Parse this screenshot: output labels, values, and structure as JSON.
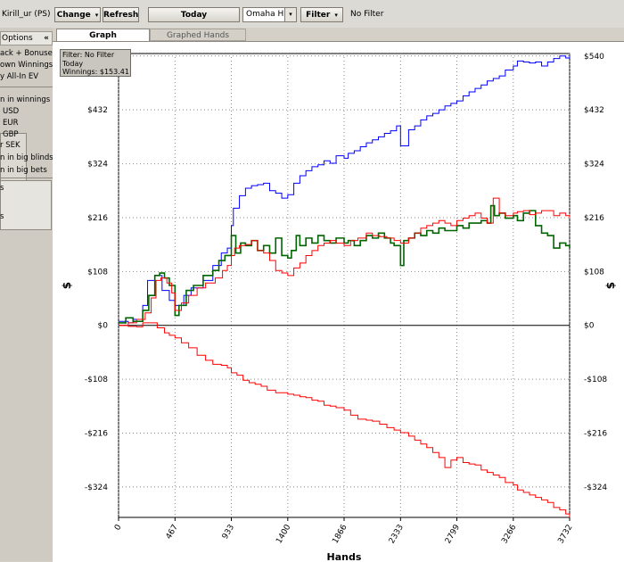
{
  "toolbar": {
    "player_label": "Kirill_ur (PS)",
    "change_label": "Change",
    "refresh_label": "Refresh",
    "today_label": "Today",
    "game_select_value": "Omaha Hi",
    "filter_label": "Filter",
    "filter_status": "No Filter"
  },
  "sidebar": {
    "header_label": "Options",
    "collapse_glyph": "«",
    "items": [
      "ack + Bonuses",
      "own Winnings",
      "y All-In EV"
    ],
    "winnings_label": "n in winnings",
    "currencies": [
      "USD",
      "EUR",
      "GBP",
      "r SEK"
    ],
    "big_blinds_label": "n in big blinds",
    "big_bets_label": "n in big bets",
    "lower_items": [
      "s",
      "",
      "s"
    ]
  },
  "tabs": [
    {
      "label": "Graph",
      "active": true
    },
    {
      "label": "Graphed Hands",
      "active": false
    }
  ],
  "infobox": {
    "filter_line": "Filter: No Filter",
    "date_line": "Today",
    "winnings_line": "Winnings: $153.41"
  },
  "chart_data": {
    "type": "line",
    "xlabel": "Hands",
    "ylabel": "$",
    "x_ticks": [
      0,
      467,
      933,
      1400,
      1866,
      2333,
      2799,
      3266,
      3732
    ],
    "y_ticks": [
      -324,
      -216,
      -108,
      0,
      108,
      216,
      324,
      432,
      540
    ],
    "y_tick_labels": [
      "-$324",
      "-$216",
      "-$108",
      "$0",
      "$108",
      "$216",
      "$324",
      "$432",
      "$540"
    ],
    "xlim": [
      0,
      3732
    ],
    "ylim": [
      -385,
      545
    ],
    "grid": true,
    "colors": {
      "blue": "#0000ff",
      "green": "#006400",
      "red": "#ff0000"
    },
    "series": [
      {
        "color": "blue",
        "x": [
          0,
          80,
          120,
          200,
          240,
          300,
          360,
          420,
          467,
          540,
          600,
          700,
          780,
          850,
          900,
          933,
          950,
          1000,
          1050,
          1100,
          1150,
          1200,
          1250,
          1300,
          1350,
          1400,
          1450,
          1500,
          1550,
          1600,
          1650,
          1700,
          1750,
          1800,
          1866,
          1900,
          1950,
          2000,
          2050,
          2100,
          2150,
          2200,
          2250,
          2300,
          2333,
          2400,
          2450,
          2500,
          2550,
          2600,
          2650,
          2700,
          2750,
          2799,
          2850,
          2900,
          2950,
          3000,
          3050,
          3100,
          3150,
          3200,
          3266,
          3300,
          3350,
          3400,
          3450,
          3500,
          3550,
          3600,
          3650,
          3700,
          3732
        ],
        "y": [
          8,
          5,
          12,
          40,
          90,
          100,
          70,
          50,
          40,
          60,
          75,
          90,
          120,
          145,
          155,
          200,
          235,
          260,
          275,
          280,
          282,
          285,
          270,
          265,
          255,
          262,
          285,
          300,
          310,
          318,
          322,
          330,
          325,
          340,
          335,
          345,
          350,
          358,
          366,
          372,
          378,
          385,
          390,
          400,
          360,
          392,
          400,
          412,
          420,
          425,
          432,
          440,
          445,
          450,
          460,
          468,
          475,
          482,
          490,
          495,
          500,
          512,
          520,
          530,
          528,
          526,
          528,
          520,
          528,
          535,
          540,
          536,
          540
        ]
      },
      {
        "color": "green",
        "x": [
          0,
          60,
          120,
          200,
          250,
          300,
          340,
          380,
          420,
          467,
          500,
          560,
          620,
          700,
          780,
          830,
          880,
          933,
          970,
          1010,
          1050,
          1100,
          1150,
          1200,
          1250,
          1300,
          1350,
          1400,
          1430,
          1470,
          1500,
          1550,
          1600,
          1650,
          1700,
          1750,
          1800,
          1866,
          1900,
          1950,
          2000,
          2050,
          2100,
          2150,
          2200,
          2250,
          2280,
          2333,
          2360,
          2400,
          2450,
          2500,
          2550,
          2600,
          2650,
          2700,
          2750,
          2799,
          2850,
          2900,
          2950,
          3000,
          3050,
          3080,
          3110,
          3150,
          3200,
          3266,
          3300,
          3350,
          3400,
          3450,
          3500,
          3550,
          3600,
          3650,
          3700,
          3732
        ],
        "y": [
          5,
          15,
          8,
          30,
          60,
          100,
          105,
          95,
          80,
          20,
          40,
          70,
          80,
          100,
          110,
          130,
          140,
          180,
          145,
          165,
          160,
          170,
          150,
          160,
          145,
          175,
          140,
          135,
          150,
          180,
          160,
          175,
          165,
          180,
          170,
          165,
          175,
          165,
          170,
          160,
          170,
          180,
          175,
          185,
          175,
          165,
          160,
          120,
          170,
          175,
          185,
          180,
          190,
          185,
          195,
          190,
          190,
          200,
          195,
          205,
          205,
          210,
          205,
          240,
          220,
          225,
          215,
          220,
          210,
          225,
          230,
          200,
          185,
          180,
          155,
          165,
          160,
          155
        ]
      },
      {
        "color": "red",
        "x": [
          0,
          80,
          150,
          220,
          270,
          310,
          350,
          400,
          440,
          467,
          520,
          580,
          650,
          720,
          800,
          860,
          900,
          933,
          960,
          1000,
          1050,
          1100,
          1150,
          1200,
          1250,
          1300,
          1350,
          1400,
          1450,
          1500,
          1550,
          1600,
          1650,
          1700,
          1750,
          1800,
          1866,
          1920,
          1980,
          2050,
          2100,
          2160,
          2220,
          2280,
          2333,
          2400,
          2450,
          2500,
          2550,
          2600,
          2650,
          2700,
          2750,
          2799,
          2850,
          2900,
          2950,
          3000,
          3050,
          3100,
          3150,
          3200,
          3266,
          3300,
          3350,
          3400,
          3450,
          3500,
          3550,
          3600,
          3650,
          3700,
          3732
        ],
        "y": [
          0,
          5,
          12,
          25,
          55,
          90,
          95,
          85,
          65,
          30,
          45,
          60,
          75,
          85,
          95,
          110,
          120,
          140,
          155,
          160,
          162,
          170,
          150,
          145,
          130,
          110,
          105,
          100,
          115,
          125,
          140,
          150,
          160,
          165,
          170,
          165,
          160,
          170,
          175,
          185,
          180,
          178,
          175,
          170,
          165,
          175,
          185,
          195,
          200,
          205,
          210,
          205,
          200,
          210,
          215,
          220,
          225,
          215,
          205,
          255,
          225,
          220,
          225,
          228,
          230,
          222,
          225,
          230,
          230,
          220,
          225,
          220,
          215
        ]
      },
      {
        "color": "red",
        "x": [
          0,
          80,
          150,
          200,
          260,
          320,
          380,
          420,
          467,
          520,
          580,
          650,
          720,
          780,
          850,
          900,
          933,
          980,
          1030,
          1080,
          1130,
          1180,
          1230,
          1300,
          1350,
          1400,
          1450,
          1500,
          1550,
          1600,
          1650,
          1700,
          1750,
          1800,
          1866,
          1920,
          1980,
          2050,
          2100,
          2160,
          2220,
          2280,
          2333,
          2400,
          2450,
          2500,
          2550,
          2600,
          2650,
          2700,
          2750,
          2799,
          2850,
          2900,
          2950,
          3000,
          3050,
          3100,
          3150,
          3200,
          3266,
          3300,
          3350,
          3400,
          3450,
          3500,
          3550,
          3600,
          3650,
          3700,
          3732
        ],
        "y": [
          0,
          -2,
          -3,
          5,
          5,
          -5,
          -15,
          -20,
          -25,
          -35,
          -45,
          -60,
          -70,
          -78,
          -80,
          -85,
          -95,
          -100,
          -110,
          -115,
          -118,
          -122,
          -130,
          -135,
          -135,
          -138,
          -140,
          -143,
          -145,
          -150,
          -152,
          -160,
          -162,
          -165,
          -170,
          -180,
          -188,
          -190,
          -192,
          -198,
          -205,
          -210,
          -215,
          -222,
          -230,
          -238,
          -245,
          -255,
          -265,
          -285,
          -270,
          -265,
          -275,
          -278,
          -280,
          -290,
          -295,
          -300,
          -305,
          -315,
          -320,
          -330,
          -335,
          -340,
          -345,
          -350,
          -355,
          -365,
          -370,
          -378,
          -385
        ]
      }
    ]
  }
}
